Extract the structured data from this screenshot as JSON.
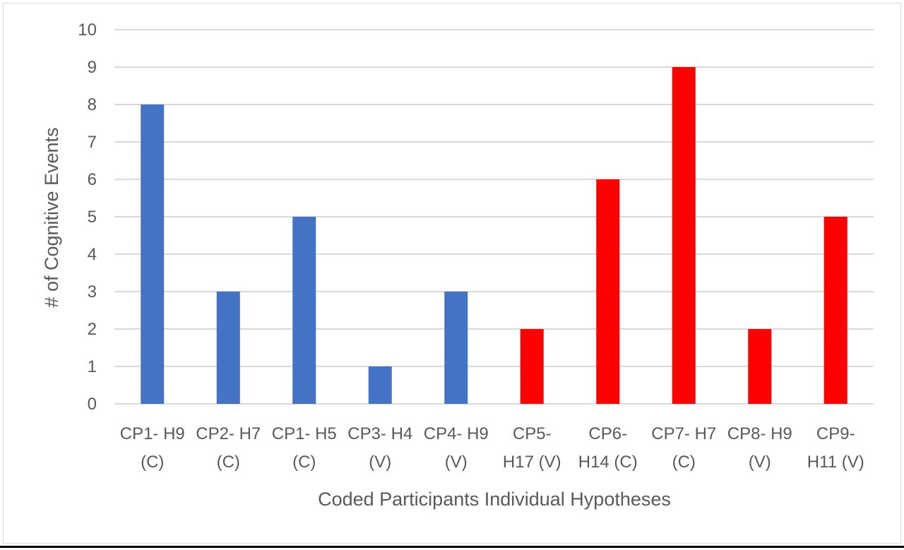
{
  "chart_data": {
    "type": "bar",
    "categories": [
      [
        "CP1- H9",
        "(C)"
      ],
      [
        "CP2- H7",
        "(C)"
      ],
      [
        "CP1- H5",
        "(C)"
      ],
      [
        "CP3- H4",
        "(V)"
      ],
      [
        "CP4- H9",
        "(V)"
      ],
      [
        "CP5-",
        "H17 (V)"
      ],
      [
        "CP6-",
        "H14 (C)"
      ],
      [
        "CP7- H7",
        "(C)"
      ],
      [
        "CP8- H9",
        "(V)"
      ],
      [
        "CP9-",
        "H11 (V)"
      ]
    ],
    "values": [
      8,
      3,
      5,
      1,
      3,
      2,
      6,
      9,
      2,
      5
    ],
    "bar_colors": [
      "#4472C4",
      "#4472C4",
      "#4472C4",
      "#4472C4",
      "#4472C4",
      "#FF0000",
      "#FF0000",
      "#FF0000",
      "#FF0000",
      "#FF0000"
    ],
    "title": "",
    "xlabel": "Coded Participants Individual Hypotheses",
    "ylabel": "# of Cognitive Events",
    "ylim": [
      0,
      10
    ],
    "yticks": [
      0,
      1,
      2,
      3,
      4,
      5,
      6,
      7,
      8,
      9,
      10
    ],
    "grid": true,
    "gridline_color": "#d9d9d9",
    "legend": "none"
  }
}
